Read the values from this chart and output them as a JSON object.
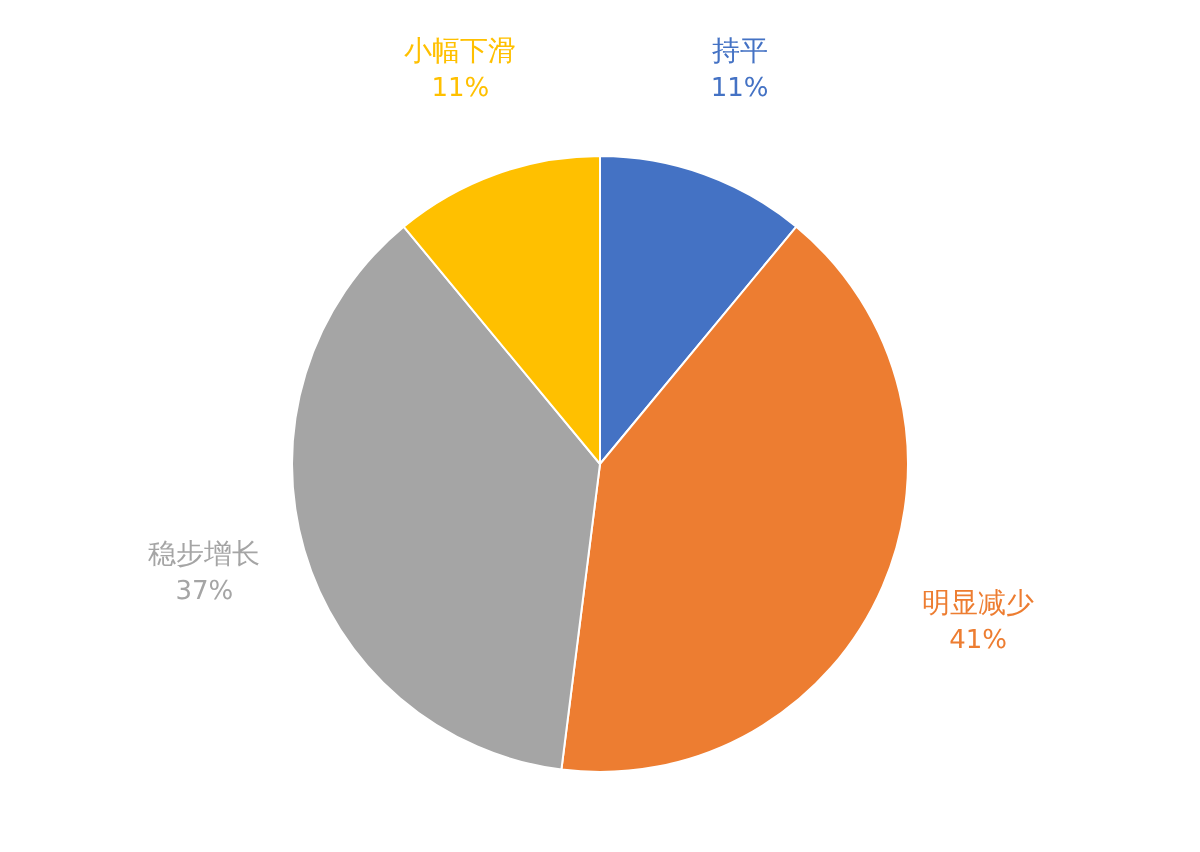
{
  "chart_data": {
    "type": "pie",
    "categories": [
      "持平",
      "明显减少",
      "稳步增长",
      "小幅下滑"
    ],
    "values": [
      11,
      41,
      37,
      11
    ],
    "colors": [
      "#4472c4",
      "#ed7d31",
      "#a5a5a5",
      "#ffc000"
    ],
    "value_labels": [
      "11%",
      "41%",
      "37%",
      "11%"
    ]
  }
}
